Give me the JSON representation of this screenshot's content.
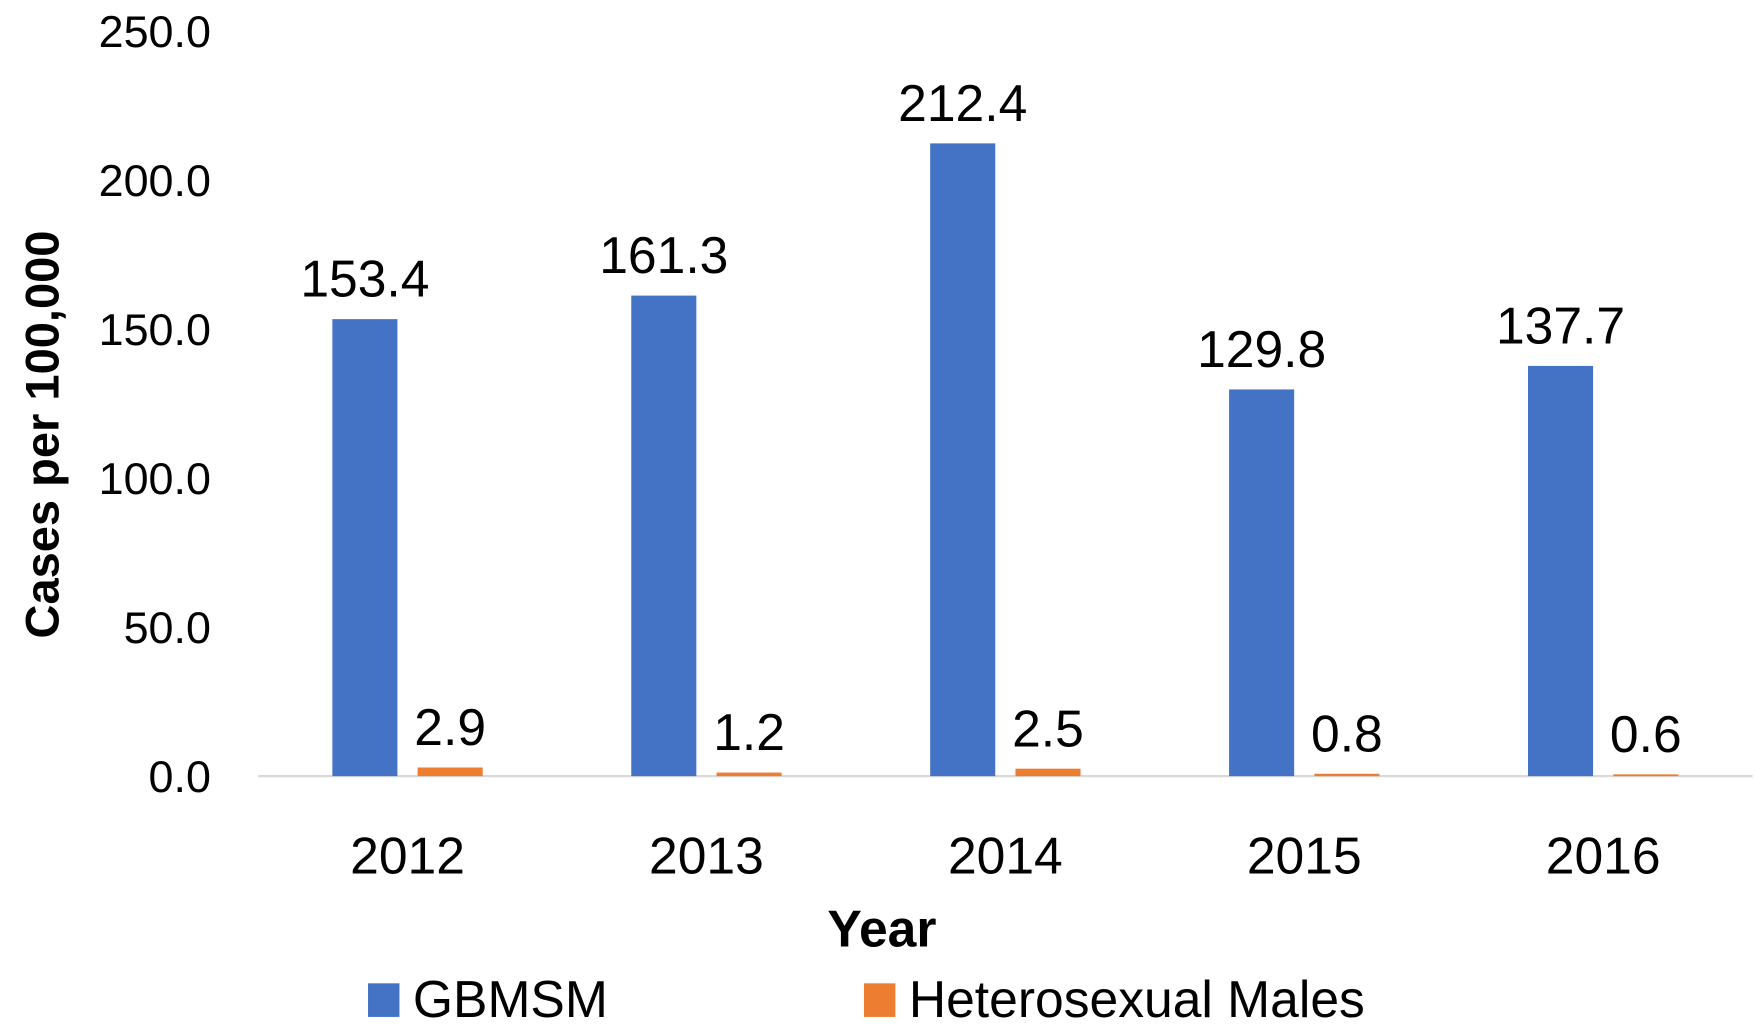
{
  "chart_data": {
    "type": "bar",
    "xlabel": "Year",
    "ylabel": "Cases per 100,000",
    "categories": [
      "2012",
      "2013",
      "2014",
      "2015",
      "2016"
    ],
    "series": [
      {
        "name": "GBMSM",
        "color": "#4472c4",
        "values": [
          153.4,
          161.3,
          212.4,
          129.8,
          137.7
        ]
      },
      {
        "name": "Heterosexual Males",
        "color": "#ed7d31",
        "values": [
          2.9,
          1.2,
          2.5,
          0.8,
          0.6
        ]
      }
    ],
    "ylim": [
      0,
      250
    ],
    "yticks": [
      {
        "value": 0,
        "label": "0.0"
      },
      {
        "value": 50,
        "label": "50.0"
      },
      {
        "value": 100,
        "label": "100.0"
      },
      {
        "value": 150,
        "label": "150.0"
      },
      {
        "value": 200,
        "label": "200.0"
      },
      {
        "value": 250,
        "label": "250.0"
      }
    ],
    "grid": false,
    "legend": "bottom"
  }
}
